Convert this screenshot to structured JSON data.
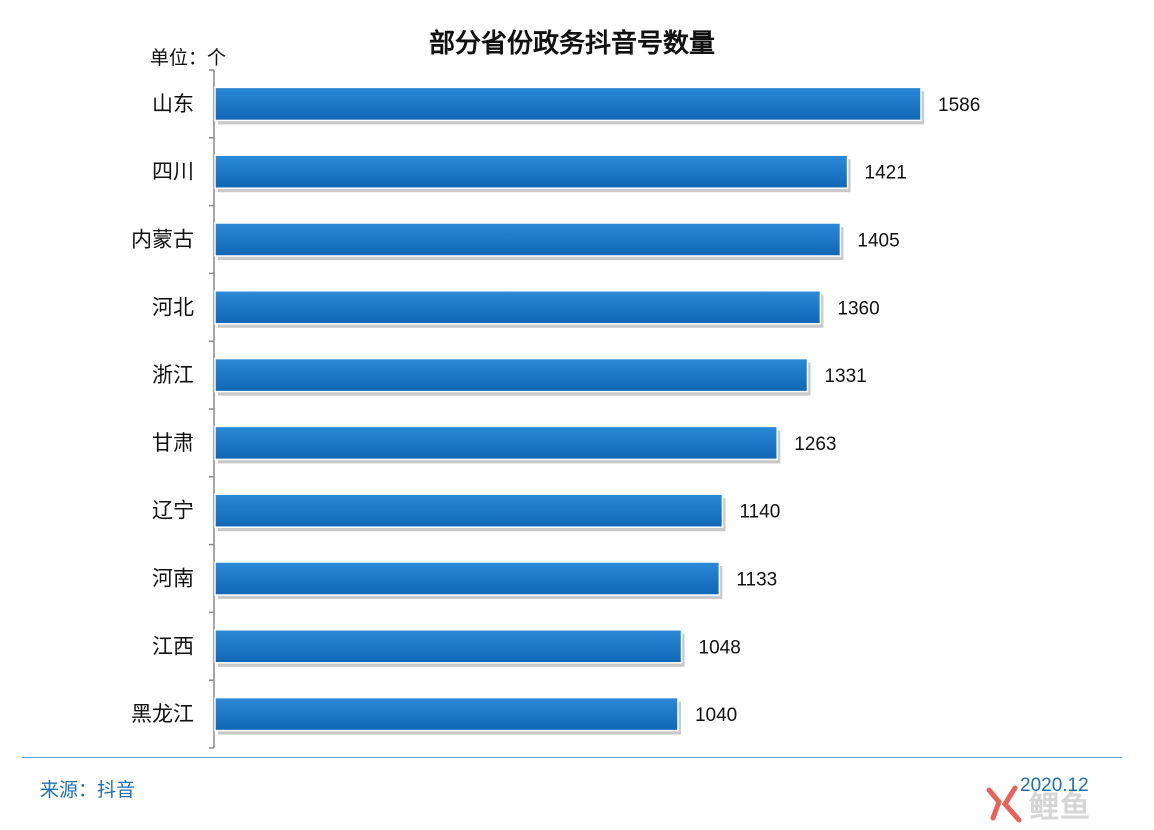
{
  "chart_data": {
    "type": "bar",
    "orientation": "horizontal",
    "title": "部分省份政务抖音号数量",
    "unit_label": "单位：个",
    "categories": [
      "山东",
      "四川",
      "内蒙古",
      "河北",
      "浙江",
      "甘肃",
      "辽宁",
      "河南",
      "江西",
      "黑龙江"
    ],
    "values": [
      1586,
      1421,
      1405,
      1360,
      1331,
      1263,
      1140,
      1133,
      1048,
      1040
    ],
    "data_labels": [
      "1586",
      "1421",
      "1405",
      "1360",
      "1331",
      "1263",
      "1140",
      "1133",
      "1048",
      "1040"
    ],
    "xlim": [
      0,
      1586
    ],
    "grid": false,
    "legend": "none",
    "bar_color": "#1c77c8"
  },
  "footer": {
    "source": "来源：抖音",
    "date": "2020.12",
    "watermark_text": "鲤鱼"
  }
}
